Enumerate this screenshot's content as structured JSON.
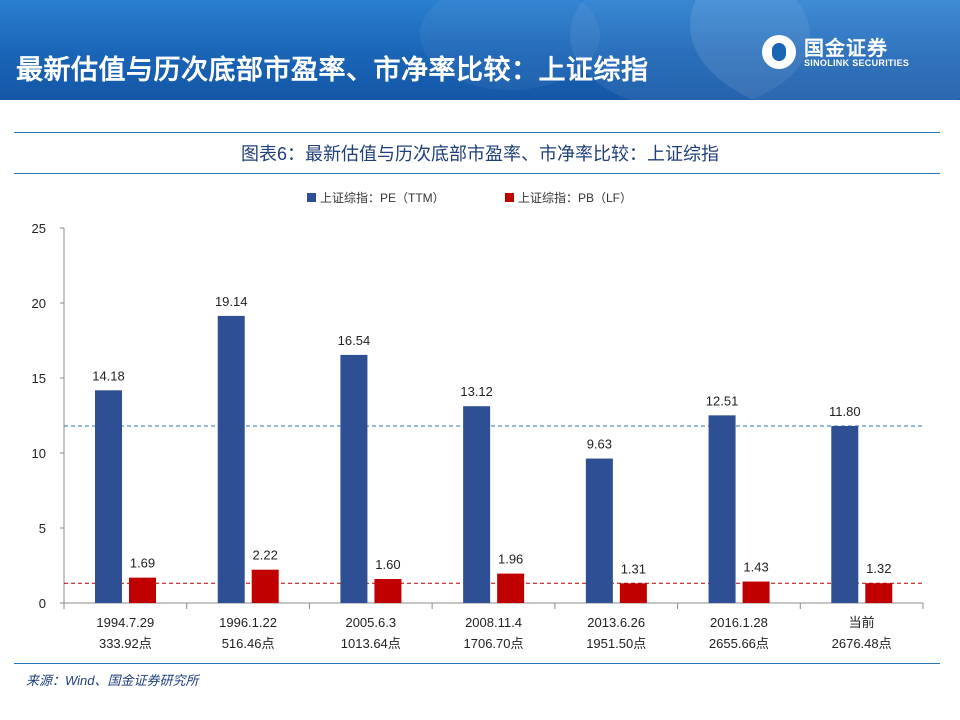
{
  "header": {
    "title": "最新估值与历次底部市盈率、市净率比较：上证综指",
    "logo_cn": "国金证券",
    "logo_en": "SINOLINK SECURITIES"
  },
  "colors": {
    "pe": "#2f4f94",
    "pb": "#c00000",
    "pe_ref_line": "#2e75b6",
    "pb_ref_line": "#c00000"
  },
  "chart_data": {
    "type": "bar",
    "title": "图表6：最新估值与历次底部市盈率、市净率比较：上证综指",
    "categories": [
      [
        "1994.7.29",
        "333.92点"
      ],
      [
        "1996.1.22",
        "516.46点"
      ],
      [
        "2005.6.3",
        "1013.64点"
      ],
      [
        "2008.11.4",
        "1706.70点"
      ],
      [
        "2013.6.26",
        "1951.50点"
      ],
      [
        "2016.1.28",
        "2655.66点"
      ],
      [
        "当前",
        "2676.48点"
      ]
    ],
    "series": [
      {
        "name": "上证综指：PE（TTM）",
        "values": [
          14.18,
          19.14,
          16.54,
          13.12,
          9.63,
          12.51,
          11.8
        ],
        "labels": [
          "14.18",
          "19.14",
          "16.54",
          "13.12",
          "9.63",
          "12.51",
          "11.80"
        ]
      },
      {
        "name": "上证综指：PB（LF）",
        "values": [
          1.69,
          2.22,
          1.6,
          1.96,
          1.31,
          1.43,
          1.32
        ],
        "labels": [
          "1.69",
          "2.22",
          "1.60",
          "1.96",
          "1.31",
          "1.43",
          "1.32"
        ]
      }
    ],
    "reference_lines": [
      11.8,
      1.32
    ],
    "y_ticks": [
      "0",
      "5",
      "10",
      "15",
      "20",
      "25"
    ],
    "ylim": [
      0,
      25
    ],
    "grid": false,
    "legend_position": "top-center"
  },
  "source": "来源：Wind、国金证券研究所"
}
